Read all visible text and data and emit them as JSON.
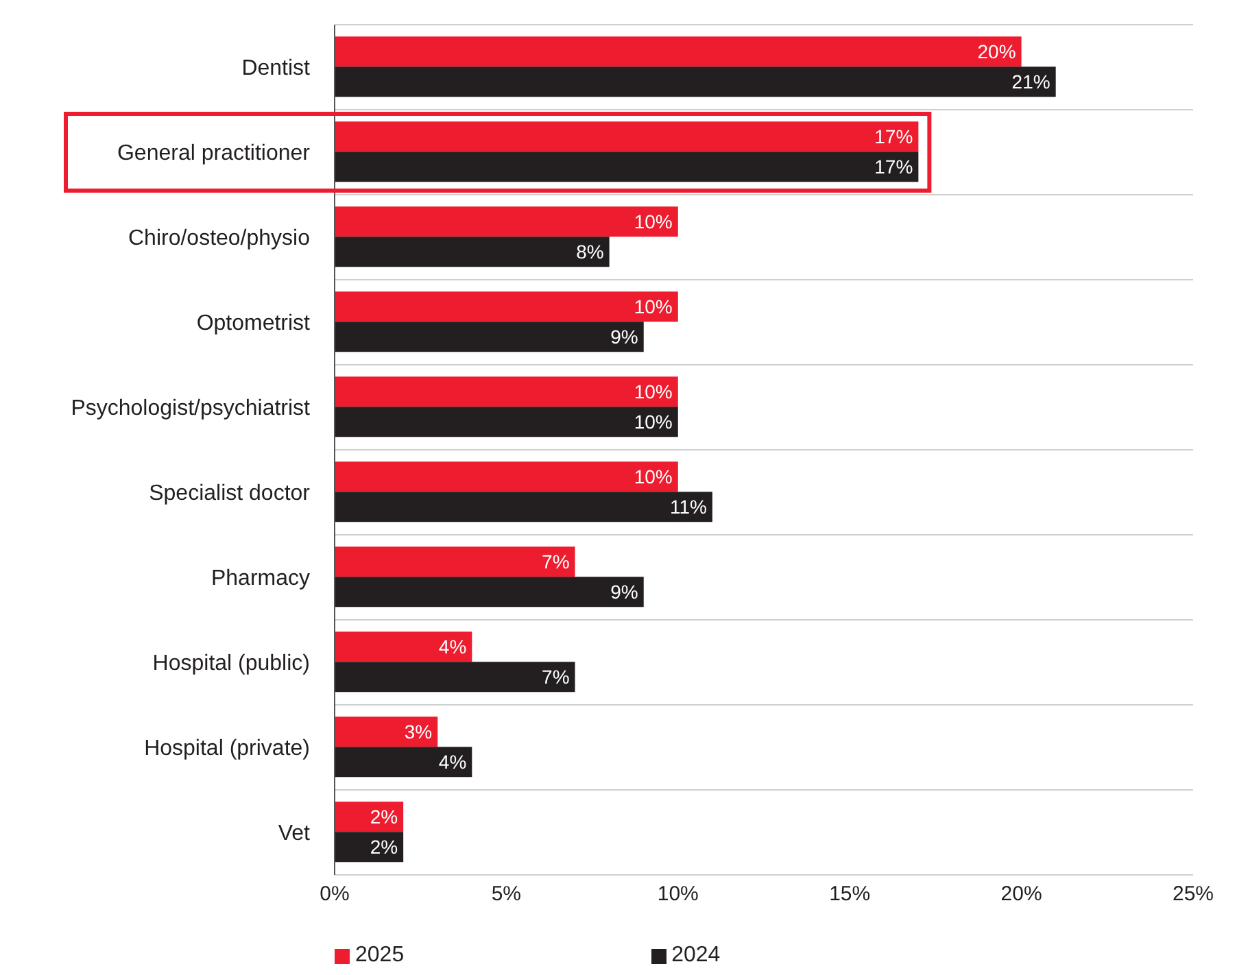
{
  "chart_data": {
    "type": "bar",
    "orientation": "horizontal",
    "categories": [
      "Dentist",
      "General practitioner",
      "Chiro/osteo/physio",
      "Optometrist",
      "Psychologist/psychiatrist",
      "Specialist doctor",
      "Pharmacy",
      "Hospital (public)",
      "Hospital (private)",
      "Vet"
    ],
    "series": [
      {
        "name": "2025",
        "color": "#ed1c2e",
        "values": [
          20,
          17,
          10,
          10,
          10,
          10,
          7,
          4,
          3,
          2
        ],
        "value_labels": [
          "20%",
          "17%",
          "10%",
          "10%",
          "10%",
          "10%",
          "7%",
          "4%",
          "3%",
          "2%"
        ]
      },
      {
        "name": "2024",
        "color": "#231f20",
        "values": [
          21,
          17,
          8,
          9,
          10,
          11,
          9,
          7,
          4,
          2
        ],
        "value_labels": [
          "21%",
          "17%",
          "8%",
          "9%",
          "10%",
          "11%",
          "9%",
          "7%",
          "4%",
          "2%"
        ]
      }
    ],
    "xlim": [
      0,
      25
    ],
    "xticks": [
      {
        "value": 0,
        "label": "0%"
      },
      {
        "value": 5,
        "label": "5%"
      },
      {
        "value": 10,
        "label": "10%"
      },
      {
        "value": 15,
        "label": "15%"
      },
      {
        "value": 20,
        "label": "20%"
      },
      {
        "value": 25,
        "label": "25%"
      }
    ],
    "grid": "y",
    "legend": "bottom left"
  }
}
